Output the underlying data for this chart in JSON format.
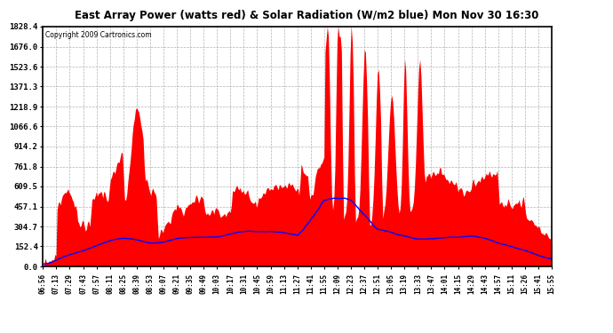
{
  "title": "East Array Power (watts red) & Solar Radiation (W/m2 blue) Mon Nov 30 16:30",
  "copyright": "Copyright 2009 Cartronics.com",
  "yticks": [
    0.0,
    152.4,
    304.7,
    457.1,
    609.5,
    761.8,
    914.2,
    1066.6,
    1218.9,
    1371.3,
    1523.6,
    1676.0,
    1828.4
  ],
  "ymax": 1828.4,
  "bg_color": "#ffffff",
  "plot_bg": "#ffffff",
  "grid_color": "#aaaaaa",
  "red_color": "#ff0000",
  "blue_color": "#0000ff",
  "x_labels": [
    "06:56",
    "07:13",
    "07:29",
    "07:43",
    "07:57",
    "08:11",
    "08:25",
    "08:39",
    "08:53",
    "09:07",
    "09:21",
    "09:35",
    "09:49",
    "10:03",
    "10:17",
    "10:31",
    "10:45",
    "10:59",
    "11:13",
    "11:27",
    "11:41",
    "11:55",
    "12:09",
    "12:23",
    "12:37",
    "12:51",
    "13:05",
    "13:19",
    "13:33",
    "13:47",
    "14:01",
    "14:15",
    "14:29",
    "14:43",
    "14:57",
    "15:11",
    "15:26",
    "15:41",
    "15:55"
  ]
}
